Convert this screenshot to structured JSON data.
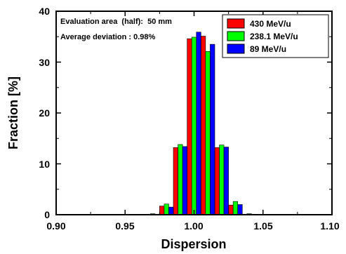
{
  "chart_data": {
    "type": "bar",
    "xlabel": "Dispersion",
    "ylabel": "Fraction [%]",
    "xlim": [
      0.9,
      1.1
    ],
    "ylim": [
      0,
      40
    ],
    "x_ticks": [
      "0.90",
      "0.95",
      "1.00",
      "1.05",
      "1.10"
    ],
    "y_ticks": [
      "0",
      "10",
      "20",
      "30",
      "40"
    ],
    "annotations": [
      "Evaluation area  (half):  50 mm",
      "Average deviation : 0.98%"
    ],
    "legend_position": "top-right",
    "bin_width": 0.01,
    "x": [
      0.96,
      0.97,
      0.98,
      0.99,
      1.0,
      1.01,
      1.02,
      1.03,
      1.04,
      1.05
    ],
    "series": [
      {
        "name": "430 MeV/u",
        "color": "#ff0000",
        "values": [
          0.05,
          0.1,
          1.7,
          13.2,
          34.6,
          35.1,
          13.2,
          1.9,
          0.1,
          0.05
        ]
      },
      {
        "name": "238.1 MeV/u",
        "color": "#00ff00",
        "values": [
          0.05,
          0.2,
          2.1,
          13.8,
          34.9,
          32.1,
          13.7,
          2.6,
          0.2,
          0.05
        ]
      },
      {
        "name": "89 MeV/u",
        "color": "#0000ff",
        "values": [
          0.05,
          0.1,
          1.5,
          13.4,
          35.9,
          33.5,
          13.3,
          2.0,
          0.1,
          0.05
        ]
      }
    ]
  }
}
